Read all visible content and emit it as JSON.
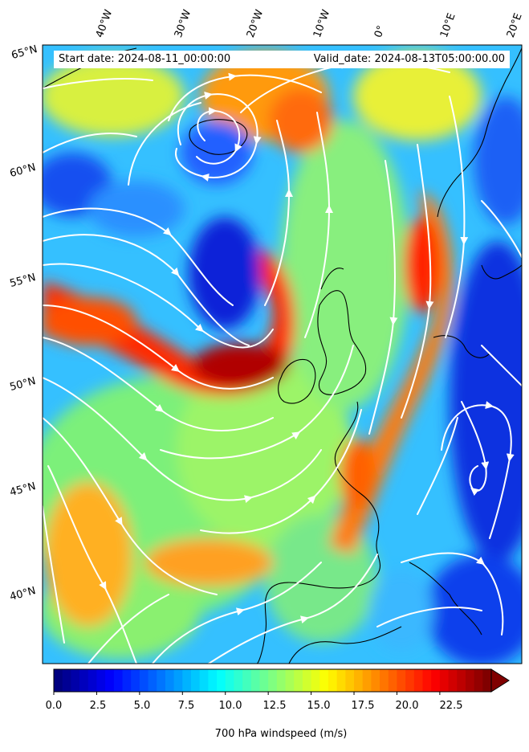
{
  "header": {
    "start_date": "Start date: 2024-08-11_00:00:00",
    "valid_date": "Valid_date: 2024-08-13T05:00:00.00"
  },
  "longitude_labels": [
    "40°W",
    "30°W",
    "20°W",
    "10°W",
    "0°",
    "10°E",
    "20°E"
  ],
  "latitude_labels": [
    "65°N",
    "60°N",
    "55°N",
    "50°N",
    "45°N",
    "40°N"
  ],
  "colorbar": {
    "label": "700 hPa windspeed (m/s)",
    "ticks": [
      "0.0",
      "2.5",
      "5.0",
      "7.5",
      "10.0",
      "12.5",
      "15.0",
      "17.5",
      "20.0",
      "22.5"
    ],
    "min": 0,
    "max": 25.5,
    "extend": "max",
    "colormap": "jet"
  },
  "map": {
    "field": "700 hPa windspeed",
    "units": "m/s",
    "overlay": "white streamlines",
    "coastline_color": "#000000"
  }
}
